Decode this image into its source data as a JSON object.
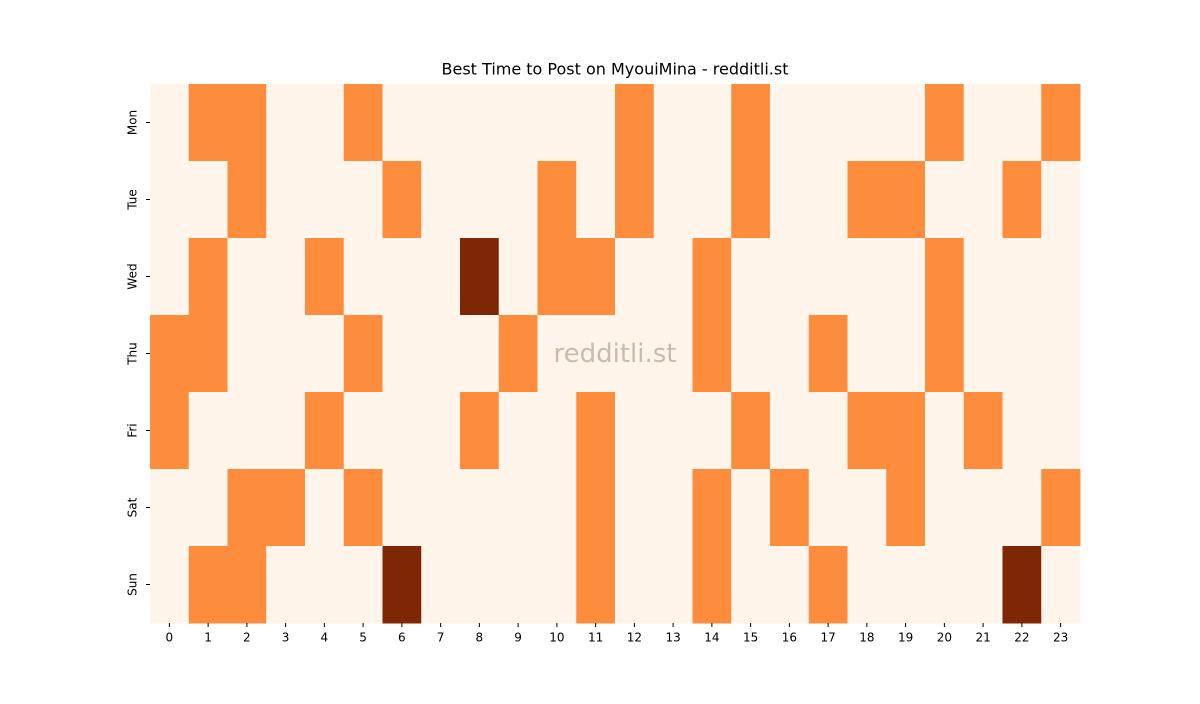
{
  "chart_data": {
    "type": "heatmap",
    "title": "Best Time to Post on MyouiMina - redditli.st",
    "watermark": "redditli.st",
    "x": [
      0,
      1,
      2,
      3,
      4,
      5,
      6,
      7,
      8,
      9,
      10,
      11,
      12,
      13,
      14,
      15,
      16,
      17,
      18,
      19,
      20,
      21,
      22,
      23
    ],
    "categories": [
      "Mon",
      "Tue",
      "Wed",
      "Thu",
      "Fri",
      "Sat",
      "Sun"
    ],
    "values": [
      [
        0,
        1,
        1,
        0,
        0,
        1,
        0,
        0,
        0,
        0,
        0,
        0,
        1,
        0,
        0,
        1,
        0,
        0,
        0,
        0,
        1,
        0,
        0,
        1
      ],
      [
        0,
        0,
        1,
        0,
        0,
        0,
        1,
        0,
        0,
        0,
        1,
        0,
        1,
        0,
        0,
        1,
        0,
        0,
        1,
        1,
        0,
        0,
        1,
        0
      ],
      [
        0,
        1,
        0,
        0,
        1,
        0,
        0,
        0,
        2,
        0,
        1,
        1,
        0,
        0,
        1,
        0,
        0,
        0,
        0,
        0,
        1,
        0,
        0,
        0
      ],
      [
        1,
        1,
        0,
        0,
        0,
        1,
        0,
        0,
        0,
        1,
        0,
        0,
        0,
        0,
        1,
        0,
        0,
        1,
        0,
        0,
        1,
        0,
        0,
        0
      ],
      [
        1,
        0,
        0,
        0,
        1,
        0,
        0,
        0,
        1,
        0,
        0,
        1,
        0,
        0,
        0,
        1,
        0,
        0,
        1,
        1,
        0,
        1,
        0,
        0
      ],
      [
        0,
        0,
        1,
        1,
        0,
        1,
        0,
        0,
        0,
        0,
        0,
        1,
        0,
        0,
        1,
        0,
        1,
        0,
        0,
        1,
        0,
        0,
        0,
        1
      ],
      [
        0,
        1,
        1,
        0,
        0,
        0,
        2,
        0,
        0,
        0,
        0,
        1,
        0,
        0,
        1,
        0,
        0,
        1,
        0,
        0,
        0,
        0,
        2,
        0
      ]
    ],
    "vlim": [
      0,
      2
    ],
    "colormap": [
      "#fff5eb",
      "#fd8d3c",
      "#7f2704"
    ]
  }
}
